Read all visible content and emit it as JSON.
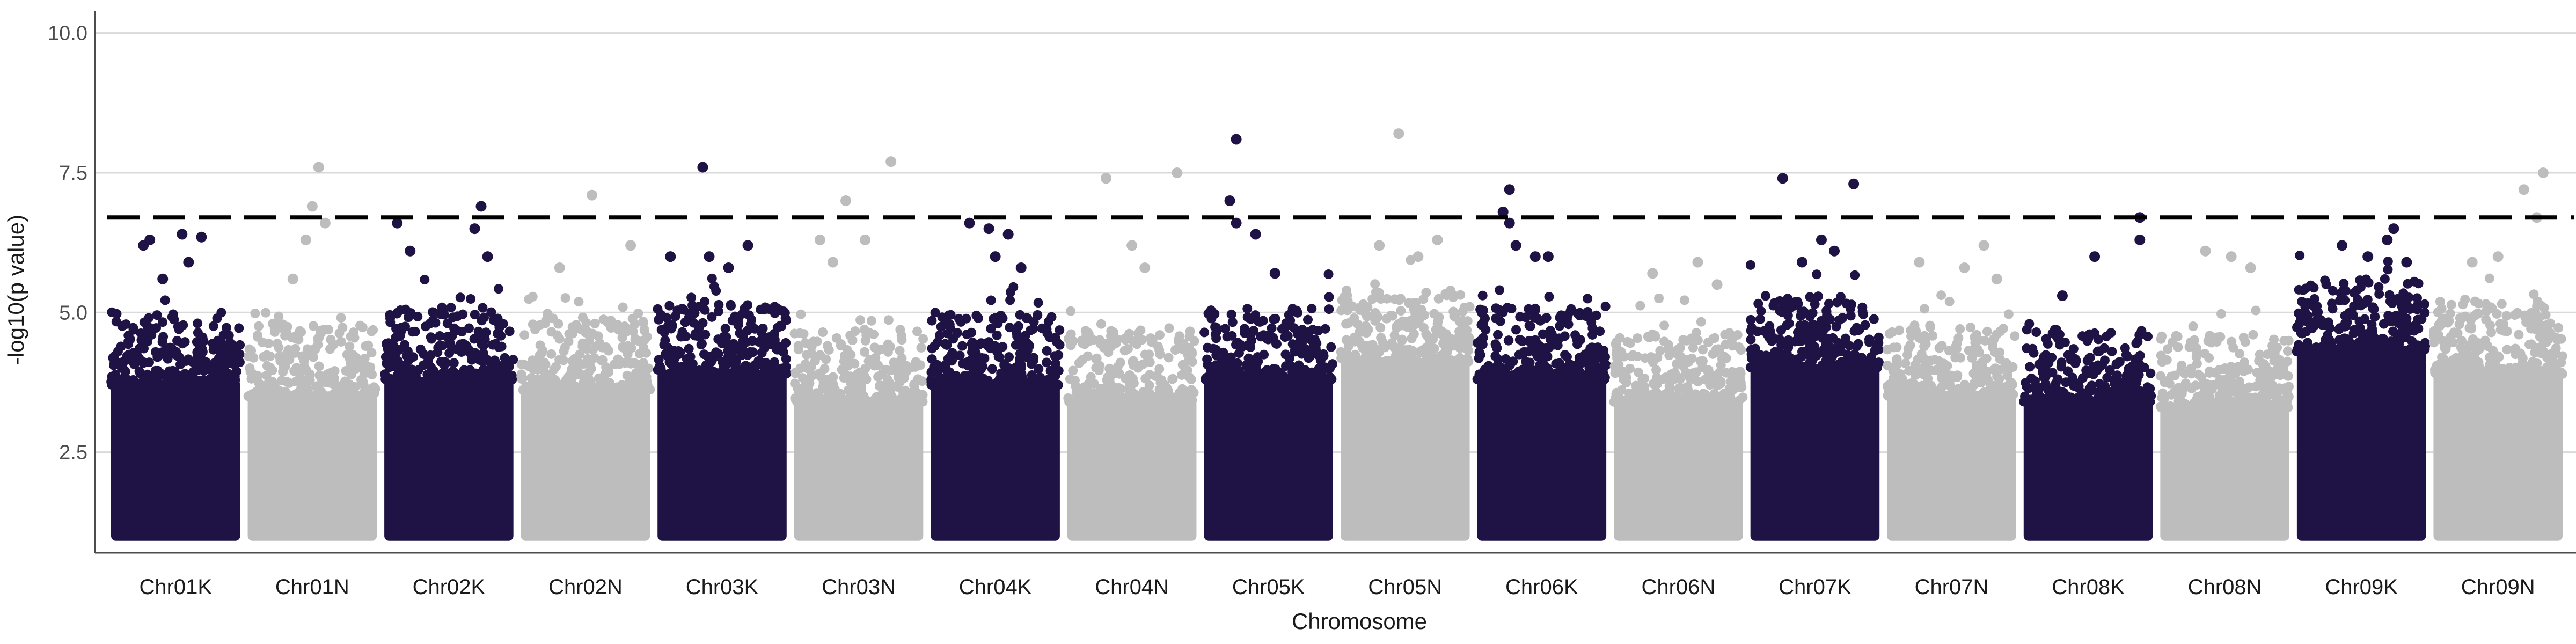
{
  "chart_data": {
    "type": "scatter",
    "subtype": "manhattan",
    "xlabel": "Chromosome",
    "ylabel": "-log10(p value)",
    "ylim": [
      0.7,
      10.4
    ],
    "yticks": [
      2.5,
      5.0,
      7.5,
      10.0
    ],
    "ytick_labels": [
      "2.5",
      "5.0",
      "7.5",
      "10.0"
    ],
    "grid": "horizontal major",
    "legend": "none",
    "threshold": 6.7,
    "colors": {
      "dark": "#1f1245",
      "light": "#bdbdbd",
      "threshold": "#000000",
      "grid": "#d9d9d9",
      "axis": "#4d4d4d"
    },
    "categories": [
      "Chr01K",
      "Chr01N",
      "Chr02K",
      "Chr02N",
      "Chr03K",
      "Chr03N",
      "Chr04K",
      "Chr04N",
      "Chr05K",
      "Chr05N",
      "Chr06K",
      "Chr06N",
      "Chr07K",
      "Chr07N",
      "Chr08K",
      "Chr08N",
      "Chr09K",
      "Chr09N"
    ],
    "bulk_top": [
      4.2,
      4.0,
      4.3,
      4.1,
      4.4,
      3.9,
      4.2,
      3.9,
      4.3,
      4.6,
      4.3,
      3.9,
      4.5,
      4.0,
      3.9,
      3.8,
      4.8,
      4.4
    ],
    "top_hits": [
      {
        "chr": "Chr01K",
        "points": [
          [
            0.25,
            6.2
          ],
          [
            0.3,
            6.3
          ],
          [
            0.55,
            6.4
          ],
          [
            0.7,
            6.35
          ],
          [
            0.4,
            5.6
          ],
          [
            0.6,
            5.9
          ]
        ]
      },
      {
        "chr": "Chr01N",
        "points": [
          [
            0.55,
            7.6
          ],
          [
            0.5,
            6.9
          ],
          [
            0.6,
            6.6
          ],
          [
            0.45,
            6.3
          ],
          [
            0.35,
            5.6
          ]
        ]
      },
      {
        "chr": "Chr02K",
        "points": [
          [
            0.75,
            6.9
          ],
          [
            0.1,
            6.6
          ],
          [
            0.7,
            6.5
          ],
          [
            0.2,
            6.1
          ],
          [
            0.8,
            6.0
          ]
        ]
      },
      {
        "chr": "Chr02N",
        "points": [
          [
            0.55,
            7.1
          ],
          [
            0.85,
            6.2
          ],
          [
            0.3,
            5.8
          ]
        ]
      },
      {
        "chr": "Chr03K",
        "points": [
          [
            0.35,
            7.6
          ],
          [
            0.7,
            6.2
          ],
          [
            0.1,
            6.0
          ],
          [
            0.4,
            6.0
          ],
          [
            0.55,
            5.8
          ]
        ]
      },
      {
        "chr": "Chr03N",
        "points": [
          [
            0.75,
            7.7
          ],
          [
            0.4,
            7.0
          ],
          [
            0.55,
            6.3
          ],
          [
            0.2,
            6.3
          ],
          [
            0.3,
            5.9
          ]
        ]
      },
      {
        "chr": "Chr04K",
        "points": [
          [
            0.3,
            6.6
          ],
          [
            0.45,
            6.5
          ],
          [
            0.6,
            6.4
          ],
          [
            0.5,
            6.0
          ],
          [
            0.7,
            5.8
          ]
        ]
      },
      {
        "chr": "Chr04N",
        "points": [
          [
            0.85,
            7.5
          ],
          [
            0.3,
            7.4
          ],
          [
            0.5,
            6.2
          ],
          [
            0.6,
            5.8
          ]
        ]
      },
      {
        "chr": "Chr05K",
        "points": [
          [
            0.25,
            6.6
          ],
          [
            0.2,
            7.0
          ],
          [
            0.25,
            8.1
          ],
          [
            0.4,
            6.4
          ],
          [
            0.55,
            5.7
          ]
        ]
      },
      {
        "chr": "Chr05N",
        "points": [
          [
            0.45,
            8.2
          ],
          [
            0.3,
            6.2
          ],
          [
            0.6,
            6.0
          ],
          [
            0.75,
            6.3
          ]
        ]
      },
      {
        "chr": "Chr06K",
        "points": [
          [
            0.25,
            7.2
          ],
          [
            0.2,
            6.8
          ],
          [
            0.25,
            6.6
          ],
          [
            0.3,
            6.2
          ],
          [
            0.45,
            6.0
          ],
          [
            0.55,
            6.0
          ]
        ]
      },
      {
        "chr": "Chr06N",
        "points": [
          [
            0.65,
            5.9
          ],
          [
            0.3,
            5.7
          ],
          [
            0.8,
            5.5
          ]
        ]
      },
      {
        "chr": "Chr07K",
        "points": [
          [
            0.25,
            7.4
          ],
          [
            0.8,
            7.3
          ],
          [
            0.55,
            6.3
          ],
          [
            0.65,
            6.1
          ],
          [
            0.4,
            5.9
          ]
        ]
      },
      {
        "chr": "Chr07N",
        "points": [
          [
            0.25,
            5.9
          ],
          [
            0.6,
            5.8
          ],
          [
            0.75,
            6.2
          ],
          [
            0.85,
            5.6
          ]
        ]
      },
      {
        "chr": "Chr08K",
        "points": [
          [
            0.9,
            6.7
          ],
          [
            0.9,
            6.3
          ],
          [
            0.55,
            6.0
          ],
          [
            0.3,
            5.3
          ]
        ]
      },
      {
        "chr": "Chr08N",
        "points": [
          [
            0.35,
            6.1
          ],
          [
            0.55,
            6.0
          ],
          [
            0.7,
            5.8
          ]
        ]
      },
      {
        "chr": "Chr09K",
        "points": [
          [
            0.75,
            6.5
          ],
          [
            0.7,
            6.3
          ],
          [
            0.35,
            6.2
          ],
          [
            0.55,
            6.0
          ],
          [
            0.85,
            5.9
          ]
        ]
      },
      {
        "chr": "Chr09N",
        "points": [
          [
            0.85,
            7.5
          ],
          [
            0.7,
            7.2
          ],
          [
            0.8,
            6.7
          ],
          [
            0.5,
            6.0
          ],
          [
            0.3,
            5.9
          ]
        ]
      }
    ]
  }
}
